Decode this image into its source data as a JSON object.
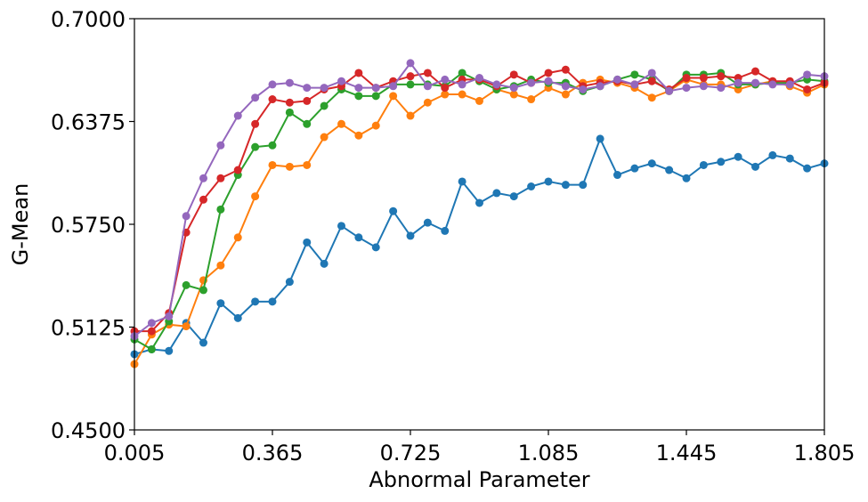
{
  "chart_data": {
    "type": "line",
    "title": "",
    "xlabel": "Abnormal Parameter",
    "ylabel": "G-Mean",
    "xlim": [
      0.005,
      1.805
    ],
    "ylim": [
      0.45,
      0.7
    ],
    "xticks": [
      "0.005",
      "0.365",
      "0.725",
      "1.085",
      "1.445",
      "1.805"
    ],
    "yticks": [
      "0.4500",
      "0.5125",
      "0.5750",
      "0.6375",
      "0.7000"
    ],
    "grid": false,
    "legend": "none",
    "x": [
      0.005,
      0.05,
      0.095,
      0.14,
      0.185,
      0.23,
      0.275,
      0.32,
      0.365,
      0.41,
      0.455,
      0.5,
      0.545,
      0.59,
      0.635,
      0.68,
      0.725,
      0.77,
      0.815,
      0.86,
      0.905,
      0.95,
      0.995,
      1.04,
      1.085,
      1.13,
      1.175,
      1.22,
      1.265,
      1.31,
      1.355,
      1.4,
      1.445,
      1.49,
      1.535,
      1.58,
      1.625,
      1.67,
      1.715,
      1.76,
      1.805
    ],
    "series": [
      {
        "color": "#1f77b4",
        "values": [
          0.496,
          0.499,
          0.498,
          0.515,
          0.503,
          0.527,
          0.518,
          0.528,
          0.528,
          0.54,
          0.564,
          0.551,
          0.574,
          0.567,
          0.561,
          0.583,
          0.568,
          0.576,
          0.571,
          0.601,
          0.588,
          0.594,
          0.592,
          0.598,
          0.601,
          0.599,
          0.599,
          0.627,
          0.605,
          0.609,
          0.612,
          0.608,
          0.603,
          0.611,
          0.613,
          0.616,
          0.61,
          0.617,
          0.615,
          0.609,
          0.612
        ]
      },
      {
        "color": "#ff7f0e",
        "values": [
          0.49,
          0.508,
          0.514,
          0.513,
          0.541,
          0.55,
          0.567,
          0.592,
          0.611,
          0.61,
          0.611,
          0.628,
          0.636,
          0.629,
          0.635,
          0.653,
          0.641,
          0.649,
          0.654,
          0.654,
          0.65,
          0.657,
          0.654,
          0.651,
          0.658,
          0.654,
          0.661,
          0.663,
          0.661,
          0.658,
          0.652,
          0.656,
          0.663,
          0.66,
          0.66,
          0.657,
          0.66,
          0.662,
          0.659,
          0.655,
          0.66
        ]
      },
      {
        "color": "#2ca02c",
        "values": [
          0.505,
          0.499,
          0.516,
          0.538,
          0.535,
          0.584,
          0.605,
          0.622,
          0.623,
          0.643,
          0.636,
          0.647,
          0.657,
          0.653,
          0.653,
          0.66,
          0.66,
          0.66,
          0.659,
          0.667,
          0.662,
          0.657,
          0.659,
          0.663,
          0.661,
          0.661,
          0.656,
          0.659,
          0.663,
          0.666,
          0.663,
          0.656,
          0.666,
          0.666,
          0.667,
          0.66,
          0.66,
          0.661,
          0.661,
          0.663,
          0.662
        ]
      },
      {
        "color": "#d62728",
        "values": [
          0.51,
          0.51,
          0.521,
          0.57,
          0.59,
          0.603,
          0.608,
          0.636,
          0.651,
          0.649,
          0.65,
          0.657,
          0.659,
          0.667,
          0.658,
          0.662,
          0.665,
          0.667,
          0.658,
          0.663,
          0.663,
          0.659,
          0.666,
          0.661,
          0.667,
          0.669,
          0.659,
          0.661,
          0.662,
          0.66,
          0.662,
          0.657,
          0.664,
          0.664,
          0.665,
          0.664,
          0.668,
          0.662,
          0.662,
          0.657,
          0.661
        ]
      },
      {
        "color": "#9467bd",
        "values": [
          0.507,
          0.515,
          0.519,
          0.58,
          0.603,
          0.623,
          0.641,
          0.652,
          0.66,
          0.661,
          0.658,
          0.658,
          0.662,
          0.658,
          0.658,
          0.659,
          0.673,
          0.659,
          0.663,
          0.66,
          0.664,
          0.66,
          0.658,
          0.661,
          0.662,
          0.659,
          0.657,
          0.659,
          0.663,
          0.66,
          0.667,
          0.656,
          0.658,
          0.659,
          0.658,
          0.661,
          0.661,
          0.66,
          0.66,
          0.666,
          0.665
        ]
      }
    ]
  }
}
